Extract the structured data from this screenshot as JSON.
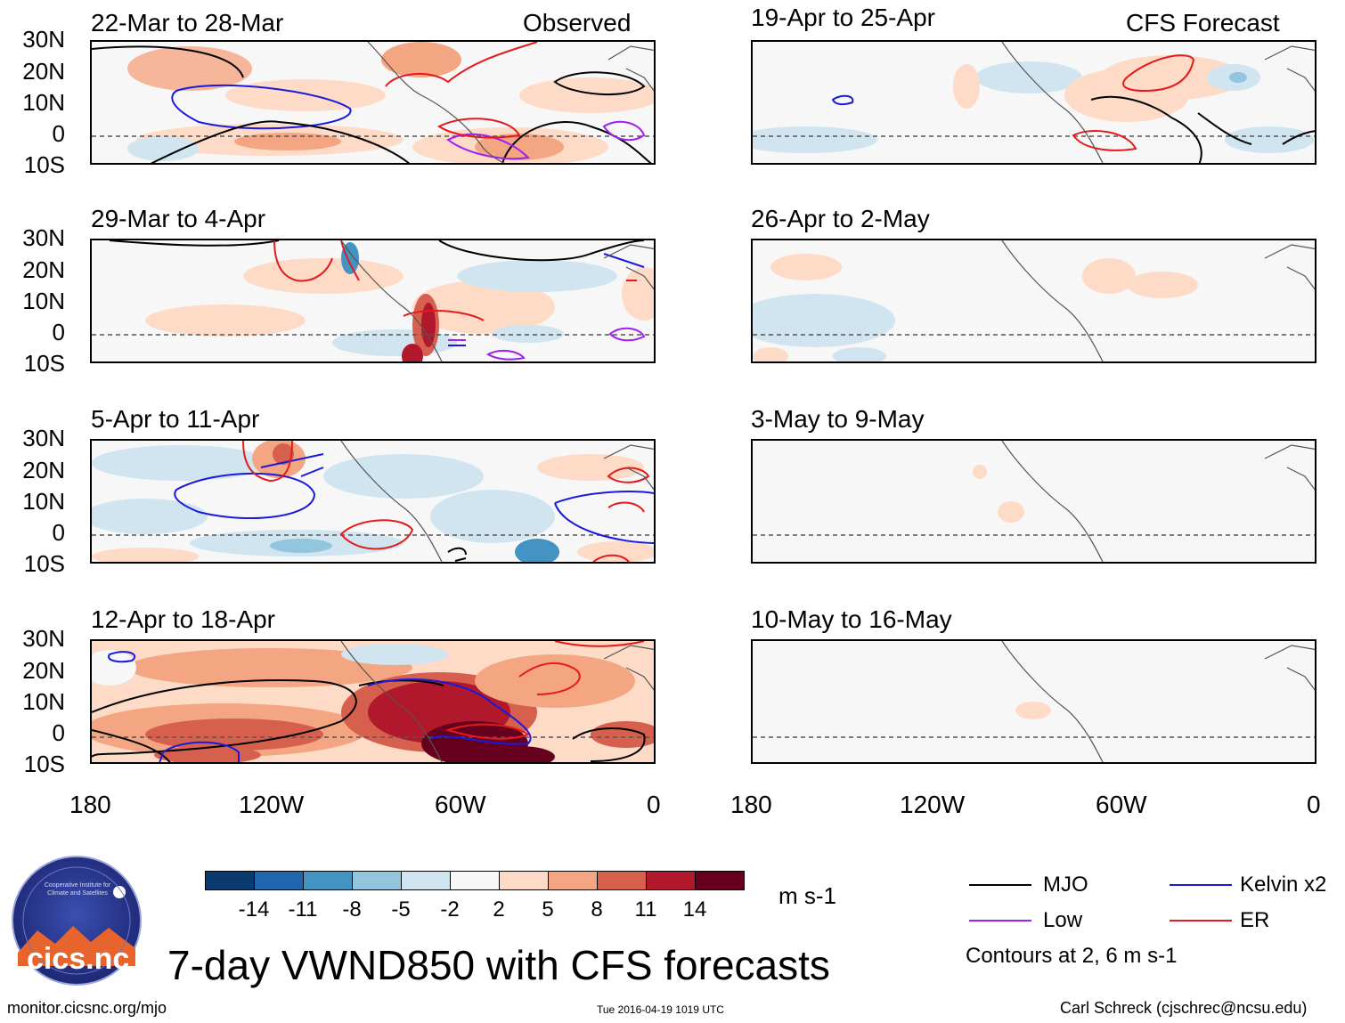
{
  "figure": {
    "title": "7-day VWND850 with CFS forecasts",
    "left_label": "Observed",
    "right_label": "CFS Forecast",
    "units": "m s-1",
    "contour_note": "Contours at 2, 6 m s-1",
    "footer_left": "monitor.cicsnc.org/mjo",
    "footer_center": "Tue 2016-04-19 1019 UTC",
    "footer_right": "Carl Schreck (cjschrec@ncsu.edu)"
  },
  "logo": {
    "text": "cics.nc",
    "ring_text": "Cooperative Institute for Climate and Satellites"
  },
  "y_labels": [
    "30N",
    "20N",
    "10N",
    "0",
    "10S"
  ],
  "x_labels": [
    "180",
    "120W",
    "60W",
    "0"
  ],
  "panels_left": [
    {
      "title": "22-Mar to 28-Mar"
    },
    {
      "title": "29-Mar to 4-Apr"
    },
    {
      "title": "5-Apr to 11-Apr"
    },
    {
      "title": "12-Apr to 18-Apr"
    }
  ],
  "panels_right": [
    {
      "title": "19-Apr to 25-Apr"
    },
    {
      "title": "26-Apr to 2-May"
    },
    {
      "title": "3-May to 9-May"
    },
    {
      "title": "10-May to 16-May"
    }
  ],
  "colorbar": {
    "labels": [
      "-14",
      "-11",
      "-8",
      "-5",
      "-2",
      "2",
      "5",
      "8",
      "11",
      "14"
    ],
    "colors": [
      "#0b3a6e",
      "#1f66ae",
      "#4393c3",
      "#92c5de",
      "#d1e5f0",
      "#f7f7f7",
      "#fddbc7",
      "#f4a582",
      "#d6604d",
      "#b2182b",
      "#67001f"
    ]
  },
  "legend": [
    {
      "label": "MJO",
      "color": "#000000"
    },
    {
      "label": "Kelvin x2",
      "color": "#1a1adc"
    },
    {
      "label": "Low",
      "color": "#a020f0"
    },
    {
      "label": "ER",
      "color": "#e41a1c"
    }
  ]
}
